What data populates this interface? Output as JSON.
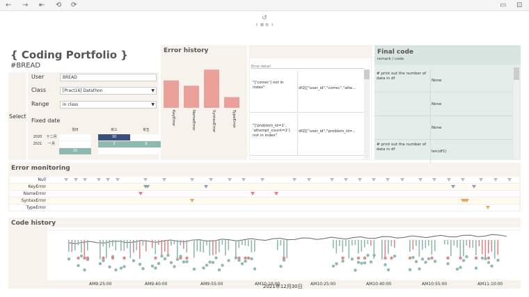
{
  "toolbar": {
    "icons": [
      "back-icon",
      "forward-icon",
      "first-page-icon",
      "revert-icon",
      "refresh-icon",
      "comment-icon",
      "fullscreen-icon"
    ]
  },
  "page_nav": {
    "undo": "↺",
    "prev": "‹",
    "next": "›"
  },
  "title": "{ Coding Portfolio }",
  "subtitle": "#BREAD",
  "filters": {
    "select_label": "Select",
    "user_label": "User",
    "user_value": "BREAD",
    "class_label": "Class",
    "class_value": "[Pract16] Datathon",
    "range_label": "Range",
    "range_value": "in class",
    "fixed_date_label": "Fixed date"
  },
  "calendar": {
    "headers": [
      "월日",
      "화三",
      "화五"
    ],
    "rows": [
      {
        "year": "2020",
        "month": "十二月",
        "cells": [
          "",
          "30",
          ""
        ]
      },
      {
        "year": "2021",
        "month": "一月",
        "cells": [
          "",
          "5",
          "8"
        ]
      },
      {
        "year": "",
        "month": "",
        "cells": [
          "20",
          "",
          ""
        ]
      }
    ]
  },
  "error_history": {
    "title": "Error history",
    "chart_data": {
      "type": "bar",
      "categories": [
        "KeyError",
        "NameError",
        "SyntaxError",
        "TypeError"
      ],
      "values": [
        46,
        37,
        64,
        18
      ],
      "ylim": [
        0,
        70
      ],
      "color": "#eaa19a"
    }
  },
  "error_detail": {
    "header": "Error detail",
    "rows": [
      {
        "error": "\"['correc'] not in index\"",
        "code": "df2[[\"user_id\",\"correc\",\"atte..."
      },
      {
        "error": "\"['problem_id=1', 'attempt_count=1'] not in index\"",
        "code": "df2[[\"user_id\",\"problem_id=.."
      }
    ]
  },
  "final_code": {
    "title": "Final code",
    "subtitle": "remark / code",
    "rows": [
      {
        "remark": "# print out the number of data in df",
        "code": "None"
      },
      {
        "remark": "",
        "code": "None"
      },
      {
        "remark": "",
        "code": "None"
      },
      {
        "remark": "# print out the number of data in df",
        "code": "len(df1)"
      }
    ]
  },
  "error_monitoring": {
    "title": "Error monitoring",
    "rows": [
      {
        "label": "Null",
        "color": "#bbbbbb",
        "marks": [
          0.03,
          0.05,
          0.07,
          0.1,
          0.12,
          0.14,
          0.2,
          0.24,
          0.3,
          0.34,
          0.38,
          0.41,
          0.45,
          0.52,
          0.55,
          0.6,
          0.63,
          0.66,
          0.69,
          0.72,
          0.75,
          0.79,
          0.82,
          0.85,
          0.88,
          0.92,
          0.95,
          0.98
        ]
      },
      {
        "label": "KeyError",
        "color": "#8f9cb8",
        "marks": [
          0.2,
          0.205,
          0.33,
          0.86,
          0.905
        ]
      },
      {
        "label": "NameError",
        "color": "#e07f78",
        "marks": [
          0.19,
          0.43,
          0.48
        ]
      },
      {
        "label": "SyntaxError",
        "color": "#e0a45a",
        "marks": [
          0.3,
          0.88,
          0.885,
          0.89
        ]
      },
      {
        "label": "TypeError",
        "color": "#e0b44a",
        "marks": [
          0.935
        ]
      }
    ]
  },
  "code_history": {
    "title": "Code history",
    "date_label": "2021年12月30日",
    "ticks": [
      "AM9:25:00",
      "AM9:40:00",
      "AM9:55:00",
      "AM10:10:00",
      "AM10:25:00",
      "AM10:40:00",
      "AM10:55:00",
      "AM11:10:00"
    ]
  },
  "colors": {
    "panel_bg": "#f7f3ec",
    "teal": "#8fb8b0",
    "navy": "#3b4f7a",
    "pink": "#eaa19a",
    "final_bg": "#e3ede9"
  }
}
